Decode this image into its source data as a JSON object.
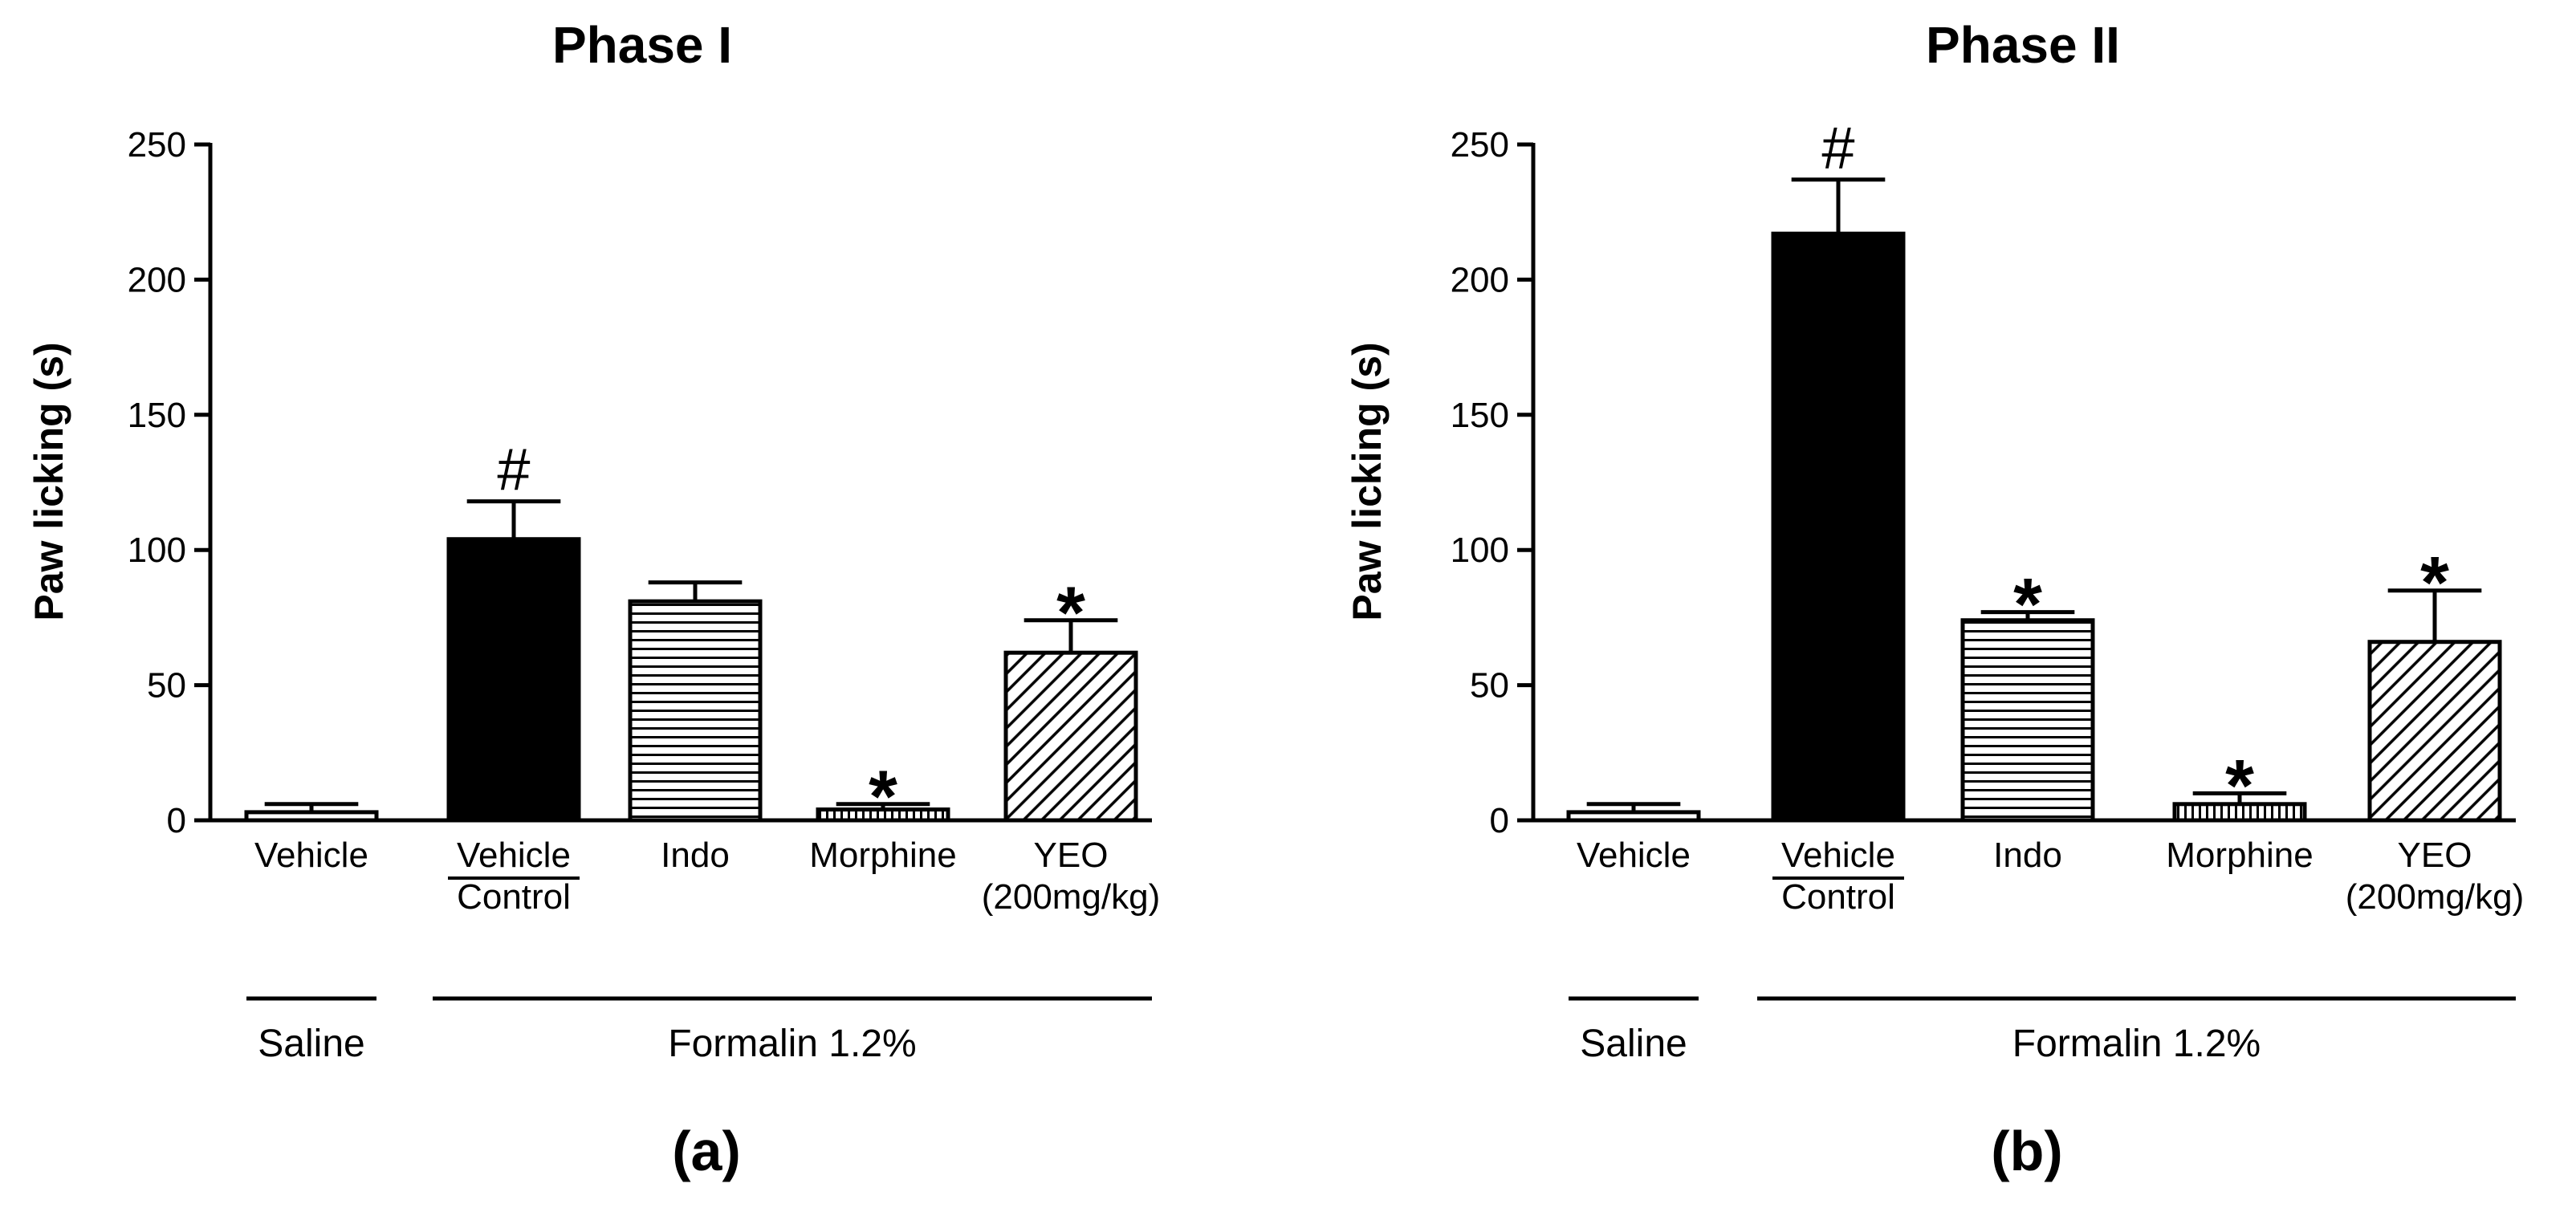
{
  "chart_data": [
    {
      "type": "bar",
      "title": "Phase I",
      "panel_label": "(a)",
      "ylabel": "Paw licking (s)",
      "xlabel": "",
      "ylim": [
        0,
        250
      ],
      "yticks": [
        "0",
        "50",
        "100",
        "150",
        "200",
        "250"
      ],
      "bars": [
        {
          "label": "Vehicle",
          "value": 3,
          "error": 3,
          "pattern": "open",
          "annotation": ""
        },
        {
          "label": "Vehicle",
          "label2": "Control",
          "value": 104,
          "error": 14,
          "pattern": "solid",
          "annotation": "#"
        },
        {
          "label": "Indo",
          "value": 81,
          "error": 7,
          "pattern": "horizontal",
          "annotation": ""
        },
        {
          "label": "Morphine",
          "value": 4,
          "error": 2,
          "pattern": "vertical",
          "annotation": "*"
        },
        {
          "label": "YEO",
          "label2": "(200mg/kg)",
          "value": 62,
          "error": 12,
          "pattern": "diagonal",
          "annotation": "*"
        }
      ],
      "groups": [
        {
          "label": "Saline",
          "bar_index_start": 0,
          "bar_index_end": 0
        },
        {
          "label": "Formalin 1.2%",
          "bar_index_start": 1,
          "bar_index_end": 4
        }
      ]
    },
    {
      "type": "bar",
      "title": "Phase II",
      "panel_label": "(b)",
      "ylabel": "Paw licking (s)",
      "xlabel": "",
      "ylim": [
        0,
        250
      ],
      "yticks": [
        "0",
        "50",
        "100",
        "150",
        "200",
        "250"
      ],
      "bars": [
        {
          "label": "Vehicle",
          "value": 3,
          "error": 3,
          "pattern": "open",
          "annotation": ""
        },
        {
          "label": "Vehicle",
          "label2": "Control",
          "value": 217,
          "error": 20,
          "pattern": "solid",
          "annotation": "#"
        },
        {
          "label": "Indo",
          "value": 74,
          "error": 3,
          "pattern": "horizontal",
          "annotation": "*"
        },
        {
          "label": "Morphine",
          "value": 6,
          "error": 4,
          "pattern": "vertical",
          "annotation": "*"
        },
        {
          "label": "YEO",
          "label2": "(200mg/kg)",
          "value": 66,
          "error": 19,
          "pattern": "diagonal",
          "annotation": "*"
        }
      ],
      "groups": [
        {
          "label": "Saline",
          "bar_index_start": 0,
          "bar_index_end": 0
        },
        {
          "label": "Formalin 1.2%",
          "bar_index_start": 1,
          "bar_index_end": 4
        }
      ]
    }
  ]
}
